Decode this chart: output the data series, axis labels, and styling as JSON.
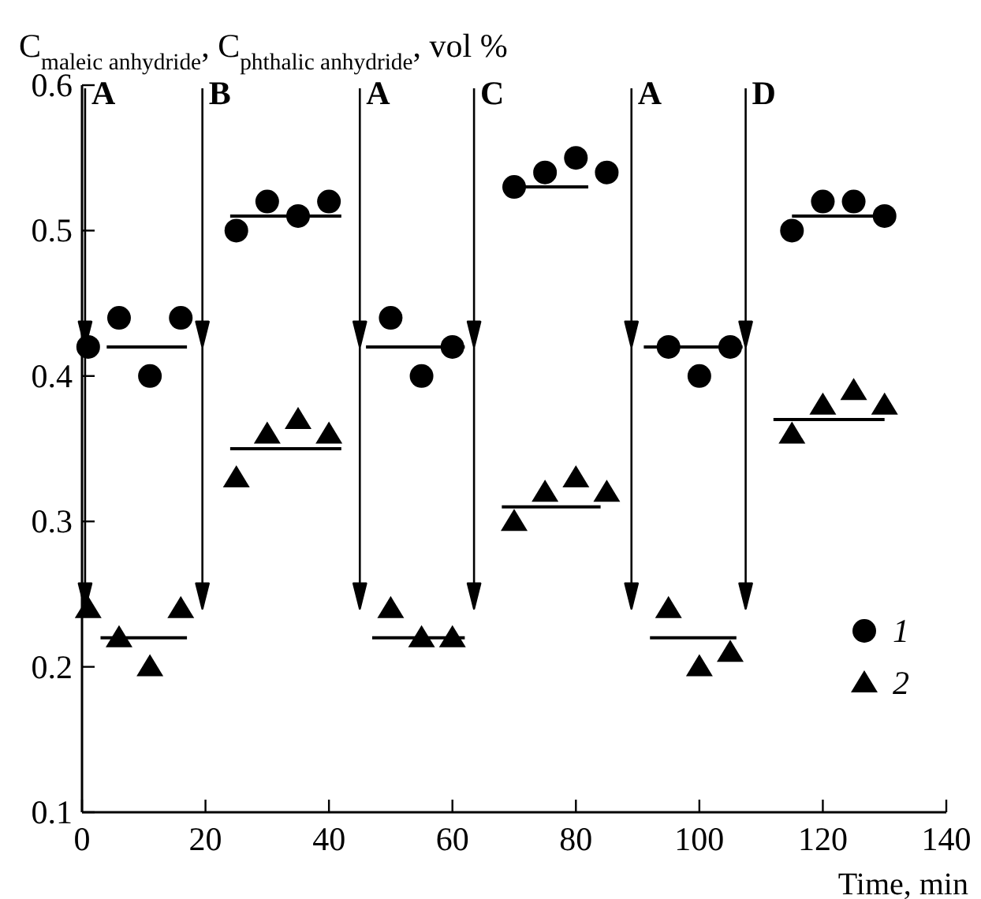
{
  "chart_data": {
    "type": "scatter",
    "ylabel": "C$_{maleic anhydride}$, C$_{phthalic anhydride}$, vol %",
    "xlabel": "Time, min",
    "xlim": [
      0,
      140
    ],
    "xticks": [
      0,
      20,
      40,
      60,
      80,
      100,
      120,
      140
    ],
    "ylim": [
      0.1,
      0.6
    ],
    "yticks": [
      0.1,
      0.2,
      0.3,
      0.4,
      0.5,
      0.6
    ],
    "legend": "right",
    "grid": false,
    "series": [
      {
        "name": "1",
        "color": "#000000",
        "marker": "circle",
        "x": [
          1,
          6,
          11,
          16,
          25,
          30,
          35,
          40,
          50,
          55,
          60,
          70,
          75,
          80,
          85,
          95,
          100,
          105,
          115,
          120,
          125,
          130
        ],
        "values": [
          0.42,
          0.44,
          0.4,
          0.44,
          0.5,
          0.52,
          0.51,
          0.52,
          0.44,
          0.4,
          0.42,
          0.53,
          0.54,
          0.55,
          0.54,
          0.42,
          0.4,
          0.42,
          0.5,
          0.52,
          0.52,
          0.51
        ]
      },
      {
        "name": "2",
        "color": "#000000",
        "marker": "triangle",
        "x": [
          1,
          6,
          11,
          16,
          25,
          30,
          35,
          40,
          50,
          55,
          60,
          70,
          75,
          80,
          85,
          95,
          100,
          105,
          115,
          120,
          125,
          130
        ],
        "values": [
          0.24,
          0.22,
          0.2,
          0.24,
          0.33,
          0.36,
          0.37,
          0.36,
          0.24,
          0.22,
          0.22,
          0.3,
          0.32,
          0.33,
          0.32,
          0.24,
          0.2,
          0.21,
          0.36,
          0.38,
          0.39,
          0.38
        ]
      },
      {
        "type": "line",
        "color": "#000000",
        "x": [
          4,
          17
        ],
        "values": [
          0.42,
          0.42
        ]
      },
      {
        "type": "line",
        "color": "#000000",
        "x": [
          24,
          42
        ],
        "values": [
          0.51,
          0.51
        ]
      },
      {
        "type": "line",
        "color": "#000000",
        "x": [
          46,
          62
        ],
        "values": [
          0.42,
          0.42
        ]
      },
      {
        "type": "line",
        "color": "#000000",
        "x": [
          71,
          82
        ],
        "values": [
          0.53,
          0.53
        ]
      },
      {
        "type": "line",
        "color": "#000000",
        "x": [
          91,
          107
        ],
        "values": [
          0.42,
          0.42
        ]
      },
      {
        "type": "line",
        "color": "#000000",
        "x": [
          115,
          130
        ],
        "values": [
          0.51,
          0.51
        ]
      },
      {
        "type": "line",
        "color": "#000000",
        "x": [
          3,
          17
        ],
        "values": [
          0.22,
          0.22
        ]
      },
      {
        "type": "line",
        "color": "#000000",
        "x": [
          24,
          42
        ],
        "values": [
          0.35,
          0.35
        ]
      },
      {
        "type": "line",
        "color": "#000000",
        "x": [
          47,
          62
        ],
        "values": [
          0.22,
          0.22
        ]
      },
      {
        "type": "line",
        "color": "#000000",
        "x": [
          68,
          84
        ],
        "values": [
          0.31,
          0.31
        ]
      },
      {
        "type": "line",
        "color": "#000000",
        "x": [
          92,
          106
        ],
        "values": [
          0.22,
          0.22
        ]
      },
      {
        "type": "line",
        "color": "#000000",
        "x": [
          112,
          130
        ],
        "values": [
          0.37,
          0.37
        ]
      }
    ],
    "ref_lines": [
      {
        "axis": "x",
        "value": 0.5,
        "label": "A"
      },
      {
        "axis": "x",
        "value": 19.5,
        "label": "B"
      },
      {
        "axis": "x",
        "value": 45,
        "label": "A"
      },
      {
        "axis": "x",
        "value": 63.5,
        "label": "C"
      },
      {
        "axis": "x",
        "value": 89,
        "label": "A"
      },
      {
        "axis": "x",
        "value": 107.5,
        "label": "D"
      }
    ]
  }
}
